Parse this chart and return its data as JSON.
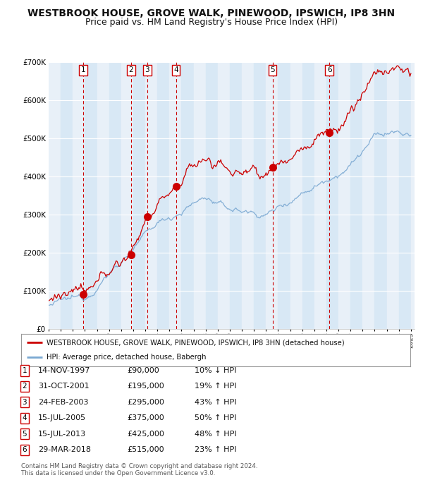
{
  "title": "WESTBROOK HOUSE, GROVE WALK, PINEWOOD, IPSWICH, IP8 3HN",
  "subtitle": "Price paid vs. HM Land Registry's House Price Index (HPI)",
  "title_fontsize": 10,
  "subtitle_fontsize": 9,
  "legend_line1": "WESTBROOK HOUSE, GROVE WALK, PINEWOOD, IPSWICH, IP8 3HN (detached house)",
  "legend_line2": "HPI: Average price, detached house, Babergh",
  "sale_color": "#cc0000",
  "hpi_color": "#7aa8d2",
  "background_color_even": "#d8e8f5",
  "background_color_odd": "#e8f0f8",
  "grid_color": "#ffffff",
  "vline_color": "#cc0000",
  "marker_color": "#cc0000",
  "ylim": [
    0,
    700000
  ],
  "yticks": [
    0,
    100000,
    200000,
    300000,
    400000,
    500000,
    600000,
    700000
  ],
  "ytick_labels": [
    "£0",
    "£100K",
    "£200K",
    "£300K",
    "£400K",
    "£500K",
    "£600K",
    "£700K"
  ],
  "year_start": 1995,
  "year_end": 2025,
  "sales": [
    {
      "num": 1,
      "date": "14-NOV-1997",
      "year": 1997.87,
      "price": 90000,
      "pct": "10%",
      "dir": "↓"
    },
    {
      "num": 2,
      "date": "31-OCT-2001",
      "year": 2001.83,
      "price": 195000,
      "pct": "19%",
      "dir": "↑"
    },
    {
      "num": 3,
      "date": "24-FEB-2003",
      "year": 2003.15,
      "price": 295000,
      "pct": "43%",
      "dir": "↑"
    },
    {
      "num": 4,
      "date": "15-JUL-2005",
      "year": 2005.54,
      "price": 375000,
      "pct": "50%",
      "dir": "↑"
    },
    {
      "num": 5,
      "date": "15-JUL-2013",
      "year": 2013.54,
      "price": 425000,
      "pct": "48%",
      "dir": "↑"
    },
    {
      "num": 6,
      "date": "29-MAR-2018",
      "year": 2018.24,
      "price": 515000,
      "pct": "23%",
      "dir": "↑"
    }
  ],
  "footnote1": "Contains HM Land Registry data © Crown copyright and database right 2024.",
  "footnote2": "This data is licensed under the Open Government Licence v3.0."
}
